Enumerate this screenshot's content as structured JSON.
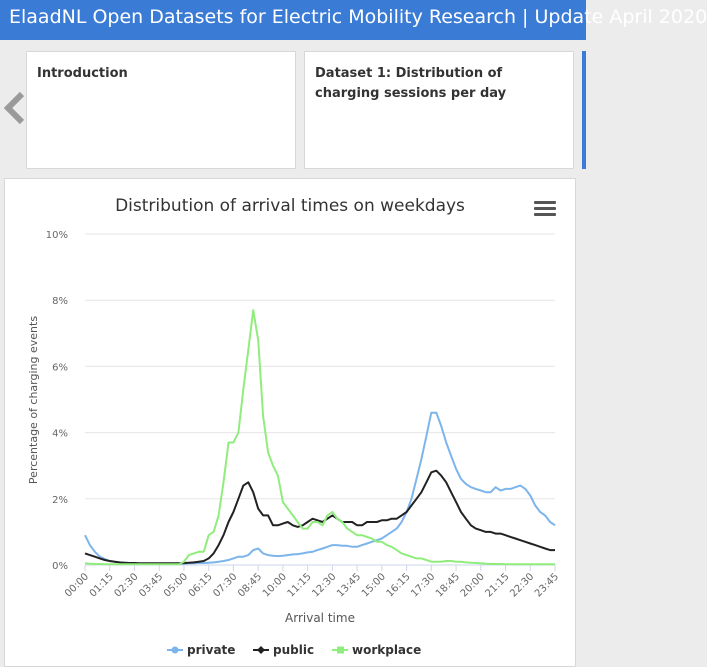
{
  "header": {
    "title": "ElaadNL Open Datasets for Electric Mobility Research | Update April 2020"
  },
  "cards": [
    {
      "title": "Introduction"
    },
    {
      "title": "Dataset 1: Distribution of charging sessions per day"
    }
  ],
  "chart_data": {
    "type": "line",
    "title": "Distribution of arrival times on weekdays",
    "xlabel": "Arrival time",
    "ylabel": "Percentage of charging events",
    "ylim": [
      0,
      10
    ],
    "yticks": [
      "0%",
      "2%",
      "4%",
      "6%",
      "8%",
      "10%"
    ],
    "grid": true,
    "legend": "bottom",
    "x_tick_labels": [
      "00:00",
      "01:15",
      "02:30",
      "03:45",
      "05:00",
      "06:15",
      "07:30",
      "08:45",
      "10:00",
      "11:15",
      "12:30",
      "13:45",
      "15:00",
      "16:15",
      "17:30",
      "18:45",
      "20:00",
      "21:15",
      "22:30",
      "23:45"
    ],
    "x_start": "00:00",
    "x_end": "23:45",
    "x_step": "15 min",
    "series": [
      {
        "name": "private",
        "color": "#7cb5ec",
        "marker": "circle",
        "values": [
          0.9,
          0.6,
          0.4,
          0.25,
          0.18,
          0.12,
          0.1,
          0.08,
          0.06,
          0.05,
          0.05,
          0.04,
          0.04,
          0.04,
          0.04,
          0.03,
          0.03,
          0.03,
          0.03,
          0.04,
          0.04,
          0.05,
          0.05,
          0.06,
          0.06,
          0.07,
          0.08,
          0.1,
          0.12,
          0.15,
          0.2,
          0.25,
          0.25,
          0.3,
          0.45,
          0.5,
          0.35,
          0.3,
          0.28,
          0.27,
          0.28,
          0.3,
          0.32,
          0.33,
          0.35,
          0.38,
          0.4,
          0.45,
          0.5,
          0.55,
          0.6,
          0.6,
          0.58,
          0.58,
          0.55,
          0.55,
          0.6,
          0.65,
          0.7,
          0.75,
          0.8,
          0.9,
          1.0,
          1.1,
          1.3,
          1.6,
          2.0,
          2.6,
          3.2,
          3.9,
          4.6,
          4.6,
          4.2,
          3.7,
          3.3,
          2.9,
          2.6,
          2.45,
          2.35,
          2.3,
          2.25,
          2.2,
          2.2,
          2.35,
          2.25,
          2.3,
          2.3,
          2.35,
          2.4,
          2.3,
          2.1,
          1.8,
          1.6,
          1.5,
          1.3,
          1.2
        ]
      },
      {
        "name": "public",
        "color": "#222222",
        "marker": "diamond",
        "values": [
          0.35,
          0.3,
          0.25,
          0.2,
          0.15,
          0.12,
          0.1,
          0.08,
          0.07,
          0.06,
          0.06,
          0.05,
          0.05,
          0.05,
          0.05,
          0.05,
          0.05,
          0.05,
          0.05,
          0.05,
          0.06,
          0.07,
          0.08,
          0.1,
          0.12,
          0.2,
          0.35,
          0.6,
          0.9,
          1.3,
          1.6,
          2.0,
          2.4,
          2.5,
          2.2,
          1.7,
          1.5,
          1.5,
          1.2,
          1.2,
          1.25,
          1.3,
          1.2,
          1.15,
          1.2,
          1.3,
          1.4,
          1.35,
          1.3,
          1.4,
          1.5,
          1.4,
          1.3,
          1.3,
          1.3,
          1.2,
          1.2,
          1.3,
          1.3,
          1.3,
          1.35,
          1.35,
          1.4,
          1.4,
          1.5,
          1.6,
          1.8,
          2.0,
          2.2,
          2.5,
          2.8,
          2.85,
          2.7,
          2.5,
          2.2,
          1.9,
          1.6,
          1.4,
          1.2,
          1.1,
          1.05,
          1.0,
          1.0,
          0.95,
          0.95,
          0.9,
          0.85,
          0.8,
          0.75,
          0.7,
          0.65,
          0.6,
          0.55,
          0.5,
          0.45,
          0.45
        ]
      },
      {
        "name": "workplace",
        "color": "#90ed7d",
        "marker": "square",
        "values": [
          0.05,
          0.04,
          0.03,
          0.03,
          0.02,
          0.02,
          0.02,
          0.02,
          0.02,
          0.02,
          0.02,
          0.02,
          0.02,
          0.02,
          0.02,
          0.02,
          0.02,
          0.02,
          0.02,
          0.02,
          0.1,
          0.3,
          0.35,
          0.4,
          0.4,
          0.9,
          1.0,
          1.5,
          2.5,
          3.7,
          3.7,
          4.0,
          5.3,
          6.5,
          7.7,
          6.8,
          4.5,
          3.4,
          3.0,
          2.7,
          1.9,
          1.7,
          1.5,
          1.3,
          1.1,
          1.1,
          1.3,
          1.3,
          1.2,
          1.5,
          1.6,
          1.4,
          1.3,
          1.1,
          1.0,
          0.9,
          0.9,
          0.85,
          0.8,
          0.7,
          0.7,
          0.6,
          0.55,
          0.45,
          0.35,
          0.3,
          0.25,
          0.2,
          0.2,
          0.15,
          0.1,
          0.1,
          0.1,
          0.12,
          0.12,
          0.1,
          0.1,
          0.08,
          0.07,
          0.06,
          0.05,
          0.04,
          0.03,
          0.03,
          0.03,
          0.02,
          0.02,
          0.02,
          0.02,
          0.02,
          0.02,
          0.02,
          0.02,
          0.02,
          0.02,
          0.02
        ]
      }
    ]
  }
}
